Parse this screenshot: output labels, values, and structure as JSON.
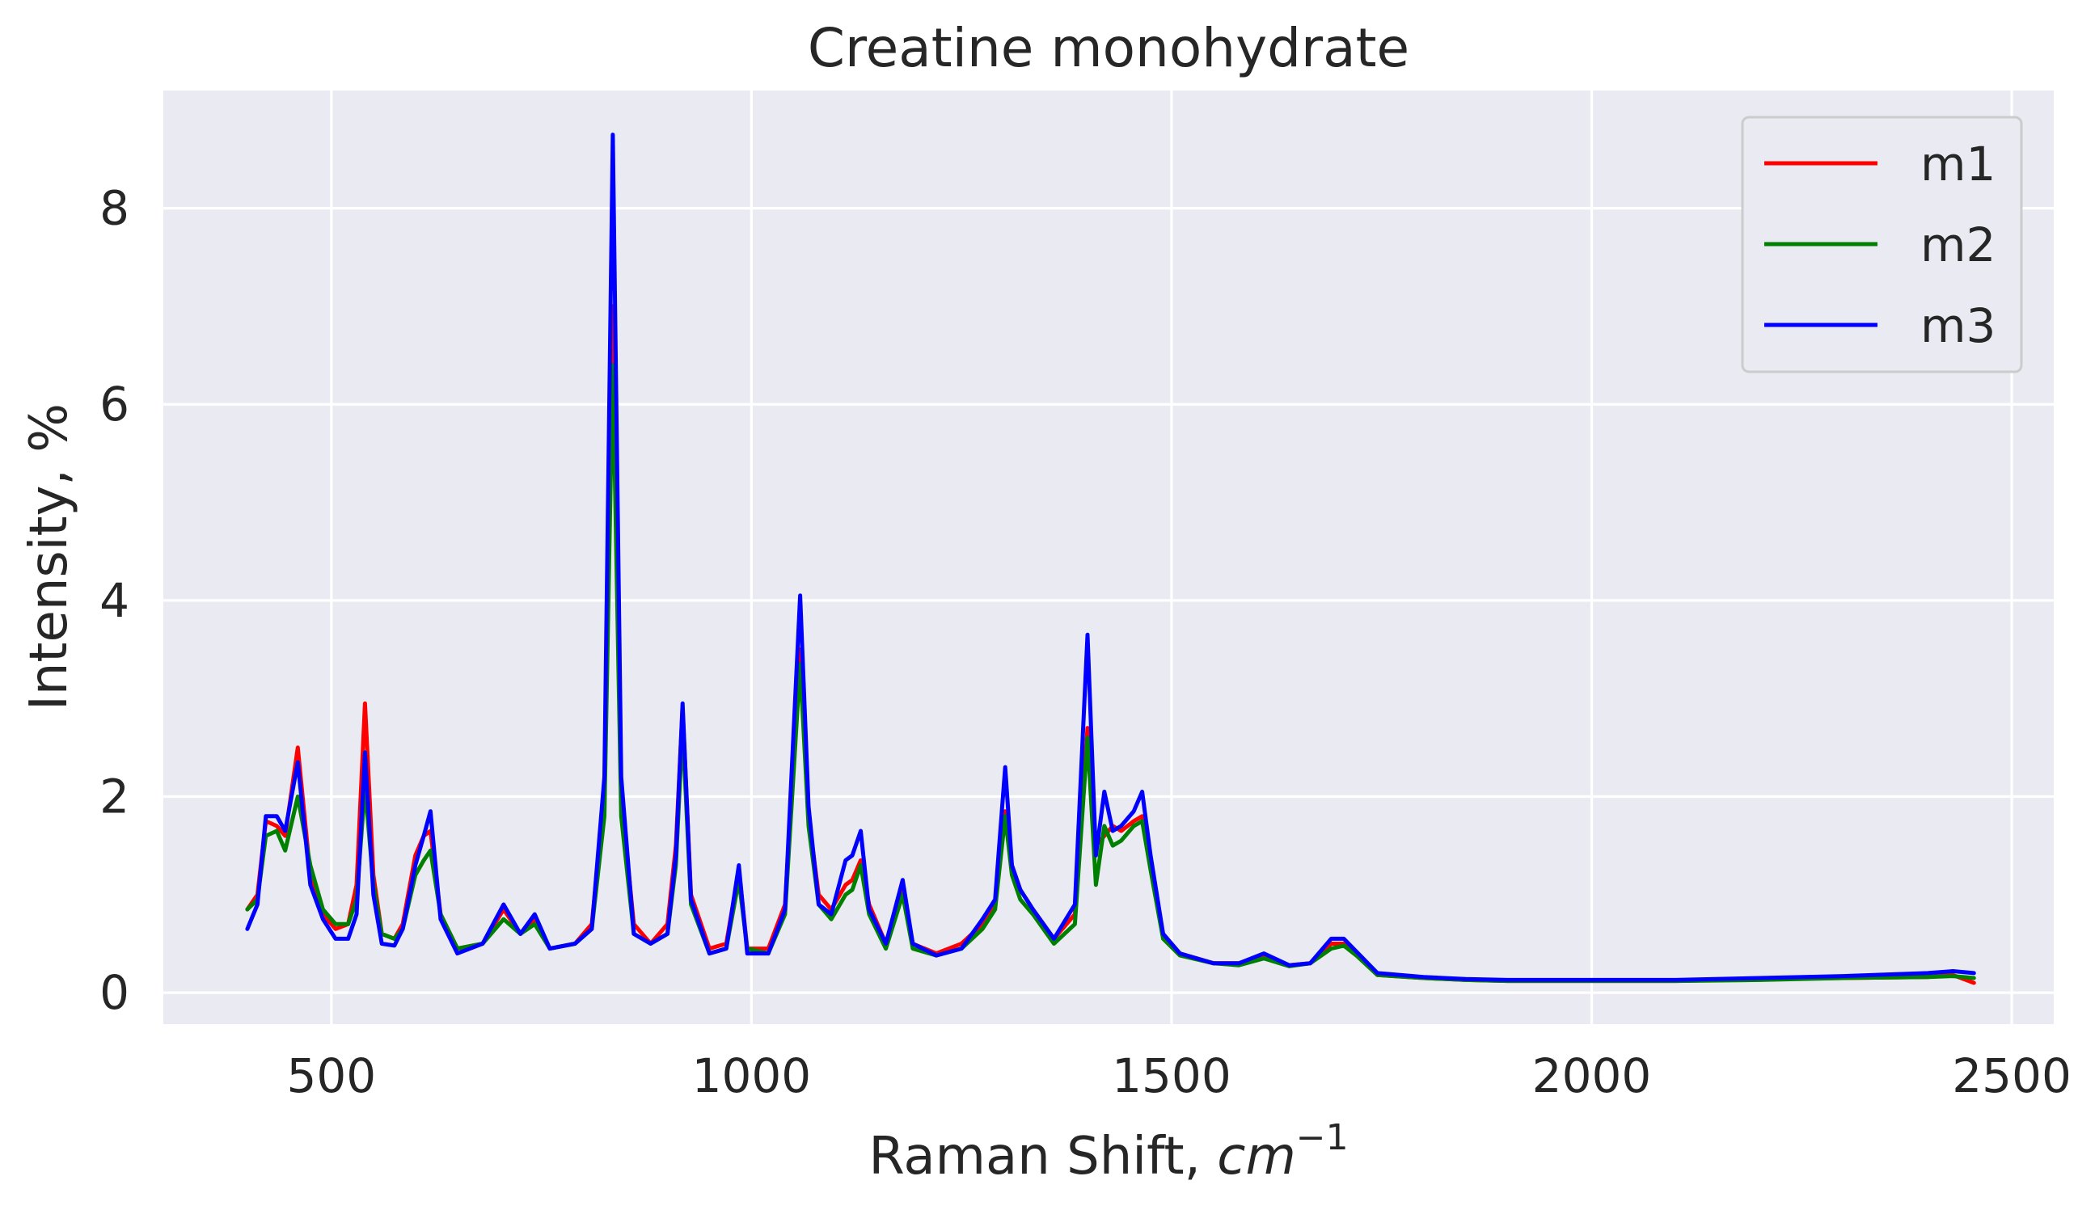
{
  "chart_data": {
    "type": "line",
    "title": "Creatine monohydrate",
    "xlabel": "Raman Shift, ",
    "xlabel_math": "cm",
    "xlabel_exponent": "−1",
    "ylabel": "Intensity, %",
    "xlim": [
      300,
      2550
    ],
    "ylim": [
      -0.32,
      9.2
    ],
    "xticks": [
      500,
      1000,
      1500,
      2000,
      2500
    ],
    "yticks": [
      0,
      2,
      4,
      6,
      8
    ],
    "grid": true,
    "background_color": "#eaeaf2",
    "legend_position": "top-right",
    "series": [
      {
        "name": "m1",
        "color": "#ff0000",
        "points": [
          [
            400,
            0.85
          ],
          [
            412,
            1.0
          ],
          [
            422,
            1.75
          ],
          [
            435,
            1.7
          ],
          [
            445,
            1.6
          ],
          [
            460,
            2.5
          ],
          [
            475,
            1.2
          ],
          [
            490,
            0.8
          ],
          [
            505,
            0.65
          ],
          [
            520,
            0.7
          ],
          [
            530,
            1.1
          ],
          [
            540,
            2.95
          ],
          [
            550,
            1.2
          ],
          [
            560,
            0.6
          ],
          [
            575,
            0.55
          ],
          [
            585,
            0.7
          ],
          [
            600,
            1.4
          ],
          [
            610,
            1.6
          ],
          [
            618,
            1.65
          ],
          [
            630,
            0.8
          ],
          [
            650,
            0.45
          ],
          [
            680,
            0.5
          ],
          [
            705,
            0.85
          ],
          [
            725,
            0.6
          ],
          [
            742,
            0.75
          ],
          [
            760,
            0.45
          ],
          [
            790,
            0.5
          ],
          [
            810,
            0.7
          ],
          [
            825,
            2.0
          ],
          [
            835,
            7.0
          ],
          [
            845,
            2.0
          ],
          [
            860,
            0.7
          ],
          [
            880,
            0.5
          ],
          [
            900,
            0.7
          ],
          [
            910,
            1.5
          ],
          [
            918,
            2.9
          ],
          [
            928,
            1.0
          ],
          [
            950,
            0.45
          ],
          [
            970,
            0.5
          ],
          [
            985,
            1.25
          ],
          [
            995,
            0.45
          ],
          [
            1020,
            0.45
          ],
          [
            1040,
            0.9
          ],
          [
            1058,
            3.5
          ],
          [
            1068,
            1.8
          ],
          [
            1080,
            1.0
          ],
          [
            1095,
            0.85
          ],
          [
            1112,
            1.1
          ],
          [
            1120,
            1.15
          ],
          [
            1130,
            1.35
          ],
          [
            1140,
            0.9
          ],
          [
            1160,
            0.5
          ],
          [
            1180,
            1.05
          ],
          [
            1192,
            0.5
          ],
          [
            1220,
            0.4
          ],
          [
            1250,
            0.5
          ],
          [
            1275,
            0.7
          ],
          [
            1290,
            0.9
          ],
          [
            1302,
            1.85
          ],
          [
            1310,
            1.3
          ],
          [
            1320,
            1.05
          ],
          [
            1335,
            0.85
          ],
          [
            1360,
            0.55
          ],
          [
            1385,
            0.8
          ],
          [
            1400,
            2.7
          ],
          [
            1410,
            1.5
          ],
          [
            1420,
            1.6
          ],
          [
            1430,
            1.7
          ],
          [
            1440,
            1.65
          ],
          [
            1455,
            1.75
          ],
          [
            1465,
            1.8
          ],
          [
            1475,
            1.3
          ],
          [
            1490,
            0.6
          ],
          [
            1510,
            0.4
          ],
          [
            1550,
            0.3
          ],
          [
            1580,
            0.3
          ],
          [
            1610,
            0.38
          ],
          [
            1640,
            0.28
          ],
          [
            1665,
            0.3
          ],
          [
            1690,
            0.5
          ],
          [
            1705,
            0.5
          ],
          [
            1720,
            0.4
          ],
          [
            1745,
            0.18
          ],
          [
            1800,
            0.15
          ],
          [
            1850,
            0.13
          ],
          [
            1900,
            0.12
          ],
          [
            2000,
            0.12
          ],
          [
            2100,
            0.12
          ],
          [
            2200,
            0.14
          ],
          [
            2300,
            0.15
          ],
          [
            2400,
            0.16
          ],
          [
            2430,
            0.18
          ],
          [
            2455,
            0.1
          ]
        ]
      },
      {
        "name": "m2",
        "color": "#008000",
        "points": [
          [
            400,
            0.85
          ],
          [
            412,
            0.95
          ],
          [
            422,
            1.6
          ],
          [
            435,
            1.65
          ],
          [
            445,
            1.45
          ],
          [
            460,
            2.0
          ],
          [
            475,
            1.3
          ],
          [
            490,
            0.85
          ],
          [
            505,
            0.7
          ],
          [
            520,
            0.7
          ],
          [
            530,
            0.95
          ],
          [
            540,
            2.1
          ],
          [
            550,
            1.1
          ],
          [
            560,
            0.6
          ],
          [
            575,
            0.55
          ],
          [
            585,
            0.65
          ],
          [
            600,
            1.2
          ],
          [
            610,
            1.35
          ],
          [
            618,
            1.45
          ],
          [
            630,
            0.8
          ],
          [
            650,
            0.45
          ],
          [
            680,
            0.5
          ],
          [
            705,
            0.75
          ],
          [
            725,
            0.6
          ],
          [
            742,
            0.7
          ],
          [
            760,
            0.45
          ],
          [
            790,
            0.5
          ],
          [
            810,
            0.65
          ],
          [
            825,
            1.8
          ],
          [
            835,
            6.4
          ],
          [
            845,
            1.8
          ],
          [
            860,
            0.6
          ],
          [
            880,
            0.5
          ],
          [
            900,
            0.6
          ],
          [
            910,
            1.3
          ],
          [
            918,
            2.7
          ],
          [
            928,
            0.9
          ],
          [
            950,
            0.4
          ],
          [
            970,
            0.45
          ],
          [
            985,
            1.15
          ],
          [
            995,
            0.45
          ],
          [
            1020,
            0.4
          ],
          [
            1040,
            0.8
          ],
          [
            1058,
            3.35
          ],
          [
            1068,
            1.7
          ],
          [
            1080,
            0.9
          ],
          [
            1095,
            0.75
          ],
          [
            1112,
            1.0
          ],
          [
            1120,
            1.05
          ],
          [
            1130,
            1.3
          ],
          [
            1140,
            0.8
          ],
          [
            1160,
            0.45
          ],
          [
            1180,
            1.0
          ],
          [
            1192,
            0.45
          ],
          [
            1220,
            0.38
          ],
          [
            1250,
            0.45
          ],
          [
            1275,
            0.65
          ],
          [
            1290,
            0.85
          ],
          [
            1302,
            1.8
          ],
          [
            1310,
            1.2
          ],
          [
            1320,
            0.95
          ],
          [
            1335,
            0.8
          ],
          [
            1360,
            0.5
          ],
          [
            1385,
            0.7
          ],
          [
            1400,
            2.6
          ],
          [
            1410,
            1.1
          ],
          [
            1420,
            1.7
          ],
          [
            1430,
            1.5
          ],
          [
            1440,
            1.55
          ],
          [
            1455,
            1.7
          ],
          [
            1465,
            1.75
          ],
          [
            1475,
            1.25
          ],
          [
            1490,
            0.55
          ],
          [
            1510,
            0.38
          ],
          [
            1550,
            0.3
          ],
          [
            1580,
            0.28
          ],
          [
            1610,
            0.35
          ],
          [
            1640,
            0.27
          ],
          [
            1665,
            0.3
          ],
          [
            1690,
            0.45
          ],
          [
            1705,
            0.48
          ],
          [
            1720,
            0.38
          ],
          [
            1745,
            0.18
          ],
          [
            1800,
            0.15
          ],
          [
            1850,
            0.13
          ],
          [
            1900,
            0.12
          ],
          [
            2000,
            0.12
          ],
          [
            2100,
            0.12
          ],
          [
            2200,
            0.13
          ],
          [
            2300,
            0.15
          ],
          [
            2400,
            0.16
          ],
          [
            2430,
            0.17
          ],
          [
            2455,
            0.15
          ]
        ]
      },
      {
        "name": "m3",
        "color": "#0000ff",
        "points": [
          [
            400,
            0.65
          ],
          [
            412,
            0.9
          ],
          [
            422,
            1.8
          ],
          [
            435,
            1.8
          ],
          [
            445,
            1.65
          ],
          [
            460,
            2.35
          ],
          [
            475,
            1.1
          ],
          [
            490,
            0.75
          ],
          [
            505,
            0.55
          ],
          [
            520,
            0.55
          ],
          [
            530,
            0.8
          ],
          [
            540,
            2.45
          ],
          [
            550,
            1.0
          ],
          [
            560,
            0.5
          ],
          [
            575,
            0.48
          ],
          [
            585,
            0.65
          ],
          [
            600,
            1.3
          ],
          [
            610,
            1.6
          ],
          [
            618,
            1.85
          ],
          [
            630,
            0.75
          ],
          [
            650,
            0.4
          ],
          [
            680,
            0.5
          ],
          [
            705,
            0.9
          ],
          [
            725,
            0.6
          ],
          [
            742,
            0.8
          ],
          [
            760,
            0.45
          ],
          [
            790,
            0.5
          ],
          [
            810,
            0.65
          ],
          [
            825,
            2.2
          ],
          [
            835,
            8.75
          ],
          [
            845,
            2.2
          ],
          [
            860,
            0.6
          ],
          [
            880,
            0.5
          ],
          [
            900,
            0.6
          ],
          [
            910,
            1.4
          ],
          [
            918,
            2.95
          ],
          [
            928,
            0.95
          ],
          [
            950,
            0.4
          ],
          [
            970,
            0.45
          ],
          [
            985,
            1.3
          ],
          [
            995,
            0.4
          ],
          [
            1020,
            0.4
          ],
          [
            1040,
            0.85
          ],
          [
            1058,
            4.05
          ],
          [
            1068,
            1.9
          ],
          [
            1080,
            0.9
          ],
          [
            1095,
            0.8
          ],
          [
            1112,
            1.35
          ],
          [
            1120,
            1.4
          ],
          [
            1130,
            1.65
          ],
          [
            1140,
            0.85
          ],
          [
            1160,
            0.5
          ],
          [
            1180,
            1.15
          ],
          [
            1192,
            0.5
          ],
          [
            1220,
            0.38
          ],
          [
            1250,
            0.45
          ],
          [
            1275,
            0.75
          ],
          [
            1290,
            0.95
          ],
          [
            1302,
            2.3
          ],
          [
            1310,
            1.3
          ],
          [
            1320,
            1.05
          ],
          [
            1335,
            0.85
          ],
          [
            1360,
            0.55
          ],
          [
            1385,
            0.9
          ],
          [
            1400,
            3.65
          ],
          [
            1410,
            1.4
          ],
          [
            1420,
            2.05
          ],
          [
            1430,
            1.65
          ],
          [
            1440,
            1.7
          ],
          [
            1455,
            1.85
          ],
          [
            1465,
            2.05
          ],
          [
            1475,
            1.4
          ],
          [
            1490,
            0.6
          ],
          [
            1510,
            0.4
          ],
          [
            1550,
            0.3
          ],
          [
            1580,
            0.3
          ],
          [
            1610,
            0.4
          ],
          [
            1640,
            0.28
          ],
          [
            1665,
            0.3
          ],
          [
            1690,
            0.55
          ],
          [
            1705,
            0.55
          ],
          [
            1720,
            0.42
          ],
          [
            1745,
            0.2
          ],
          [
            1800,
            0.16
          ],
          [
            1850,
            0.14
          ],
          [
            1900,
            0.13
          ],
          [
            2000,
            0.13
          ],
          [
            2100,
            0.13
          ],
          [
            2200,
            0.15
          ],
          [
            2300,
            0.17
          ],
          [
            2400,
            0.2
          ],
          [
            2430,
            0.22
          ],
          [
            2455,
            0.2
          ]
        ]
      }
    ]
  }
}
